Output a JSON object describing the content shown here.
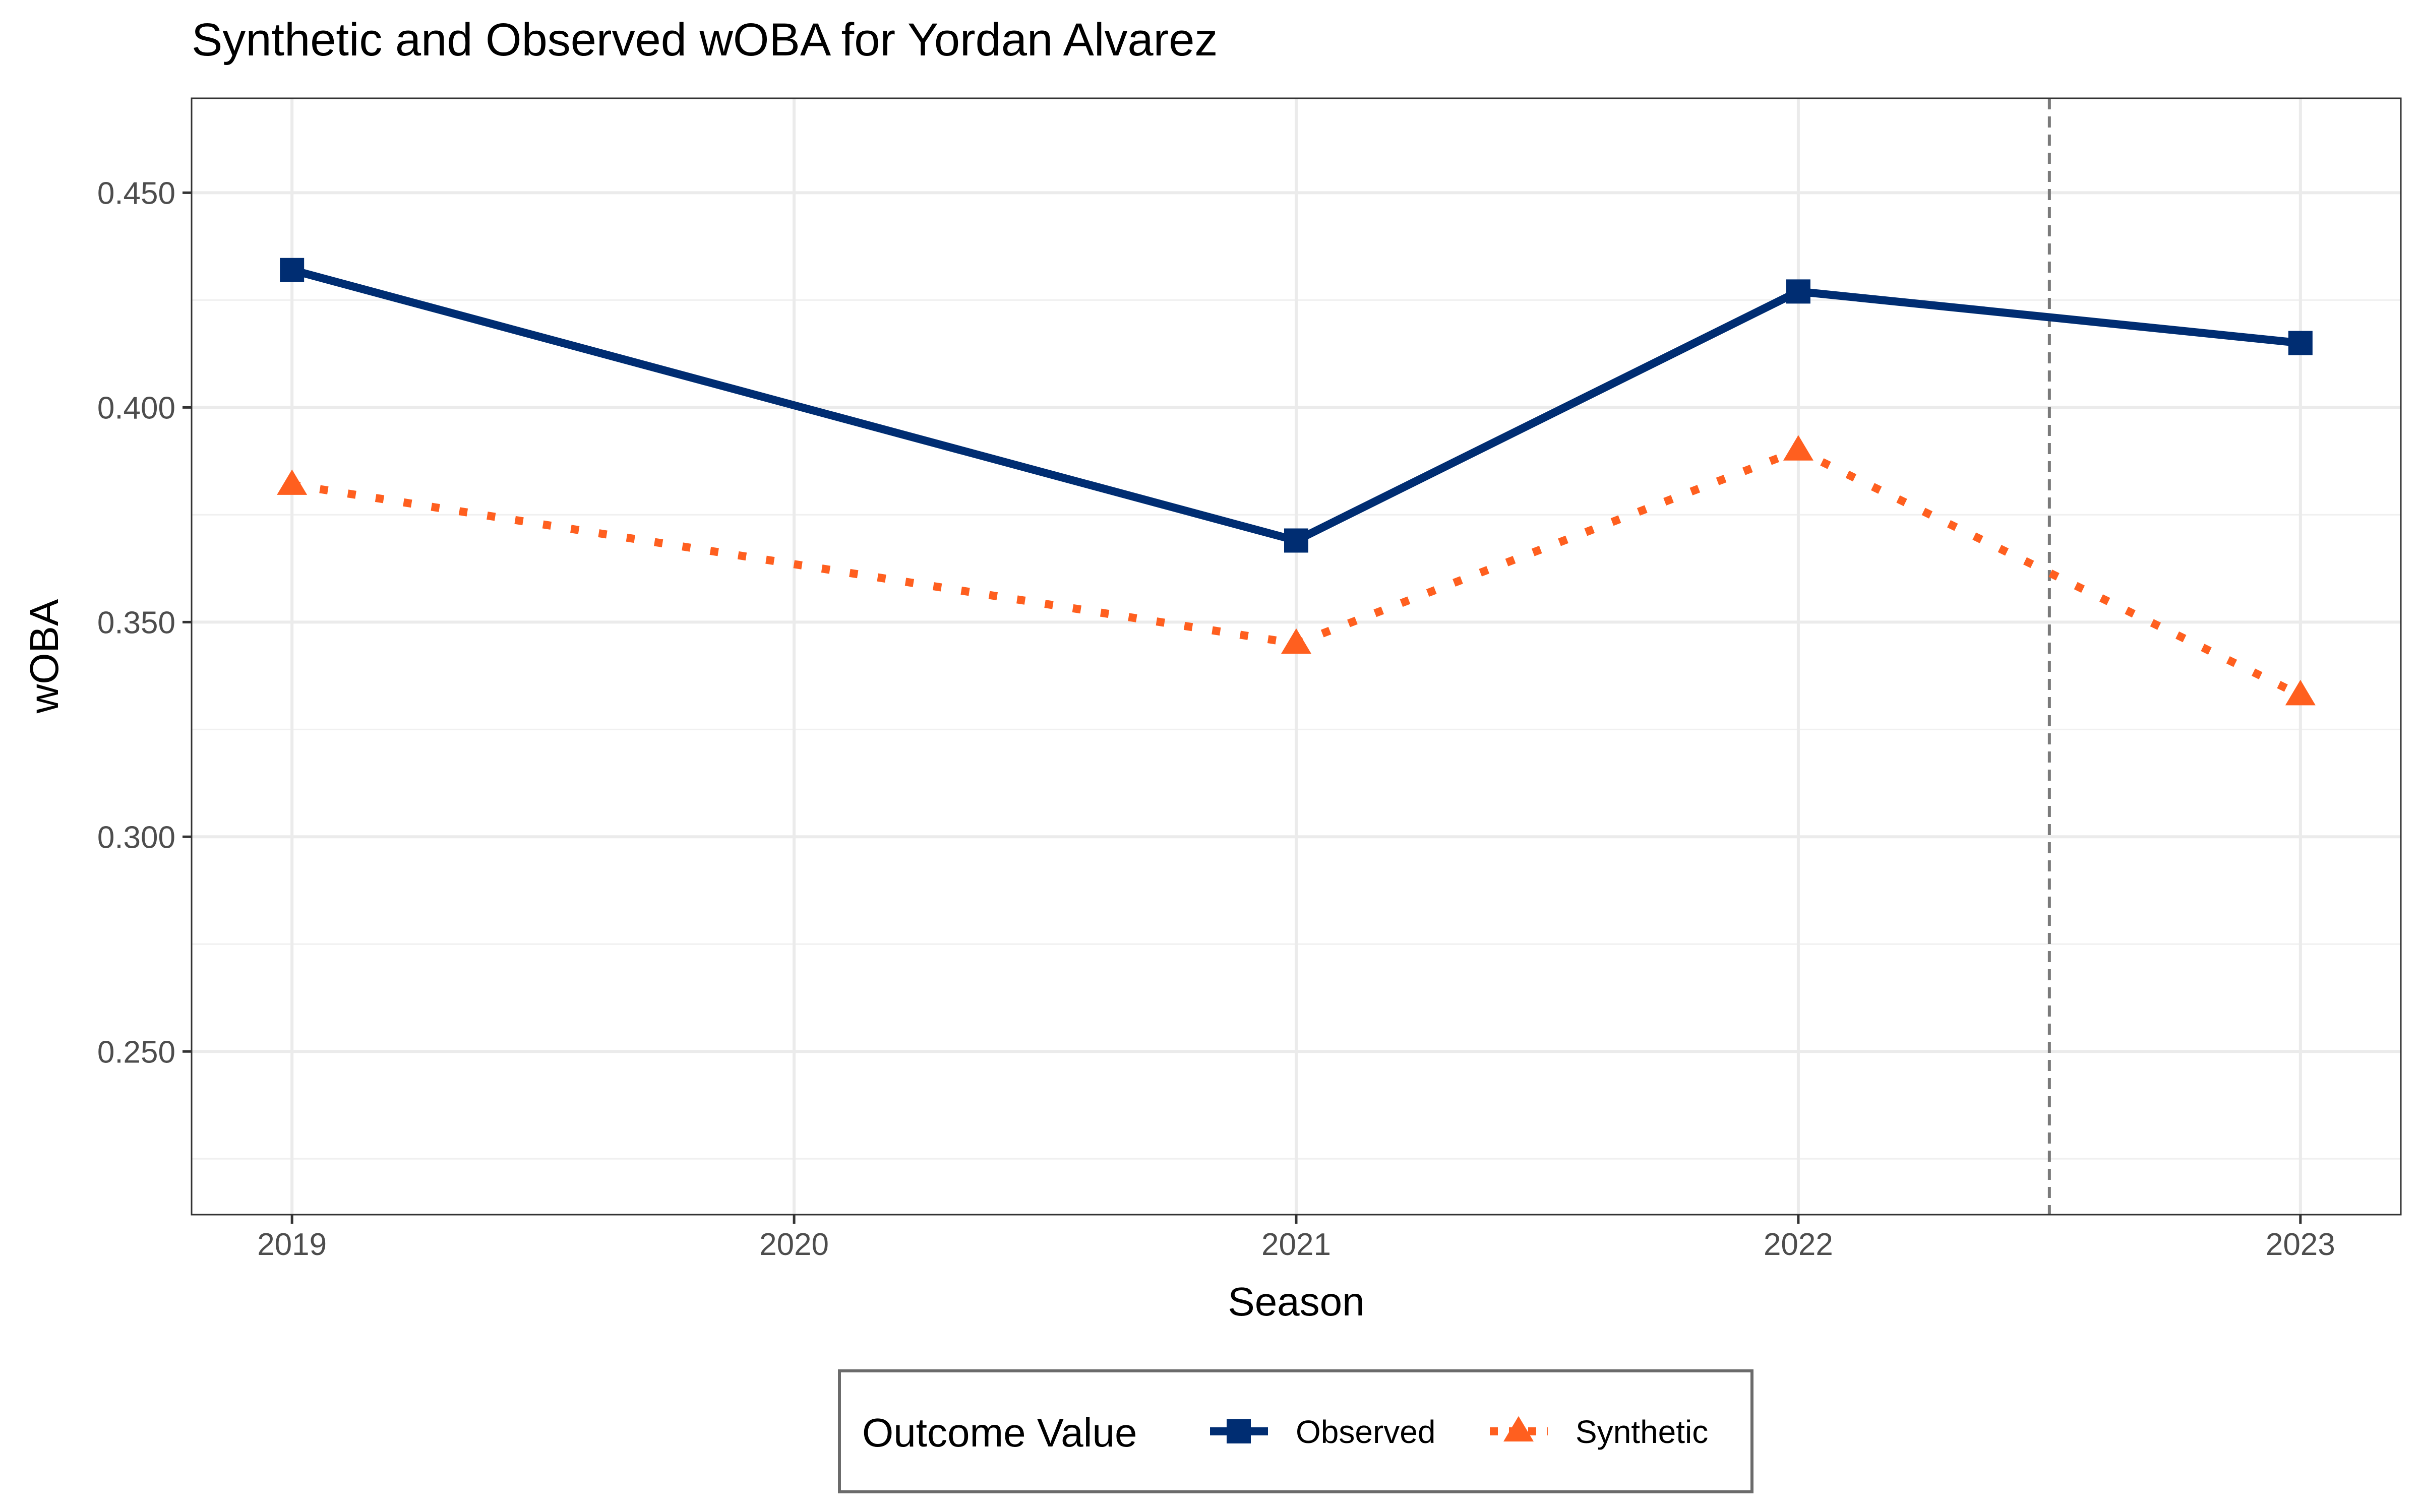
{
  "chart_data": {
    "type": "line",
    "title": "Synthetic and Observed wOBA for Yordan Alvarez",
    "xlabel": "Season",
    "ylabel": "wOBA",
    "x": [
      2019,
      2020,
      2021,
      2022,
      2023
    ],
    "x_tick_labels": [
      "2019",
      "2020",
      "2021",
      "2022",
      "2023"
    ],
    "y_tick_labels": [
      "0.250",
      "0.300",
      "0.350",
      "0.400",
      "0.450"
    ],
    "y_ticks": [
      0.25,
      0.3,
      0.35,
      0.4,
      0.45
    ],
    "y_minor_ticks": [
      0.225,
      0.275,
      0.325,
      0.375,
      0.425
    ],
    "xlim": [
      2018.8,
      2023.2
    ],
    "ylim": [
      0.212,
      0.472
    ],
    "grid": true,
    "vertical_reference_line": 2022.5,
    "series": [
      {
        "name": "Observed",
        "points": [
          {
            "x": 2019,
            "y": 0.432
          },
          {
            "x": 2021,
            "y": 0.369
          },
          {
            "x": 2022,
            "y": 0.427
          },
          {
            "x": 2023,
            "y": 0.415
          }
        ],
        "color": "#002D72",
        "line_style": "solid",
        "marker": "square"
      },
      {
        "name": "Synthetic",
        "points": [
          {
            "x": 2019,
            "y": 0.382
          },
          {
            "x": 2021,
            "y": 0.345
          },
          {
            "x": 2022,
            "y": 0.39
          },
          {
            "x": 2023,
            "y": 0.333
          }
        ],
        "color": "#FF5F1F",
        "line_style": "dotted",
        "marker": "triangle"
      }
    ],
    "legend": {
      "title": "Outcome Value",
      "position": "bottom",
      "entries": [
        "Observed",
        "Synthetic"
      ]
    }
  }
}
